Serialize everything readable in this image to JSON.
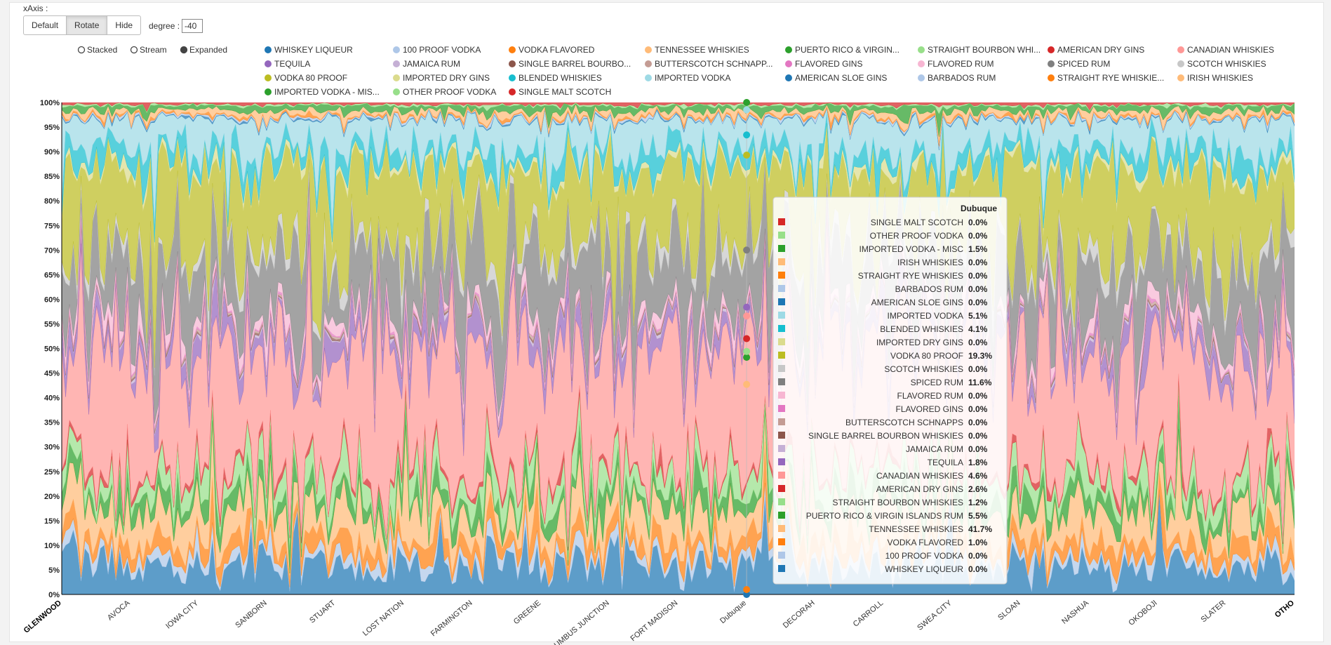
{
  "controls": {
    "xaxis_label": "xAxis :",
    "buttons": [
      "Default",
      "Rotate",
      "Hide"
    ],
    "active_button": "Rotate",
    "degree_label": "degree :",
    "degree_value": "-40",
    "modes": [
      "Stacked",
      "Stream",
      "Expanded"
    ],
    "active_mode": "Expanded"
  },
  "colors": {
    "WHISKEY LIQUEUR": "#1f77b4",
    "100 PROOF VODKA": "#aec7e8",
    "VODKA FLAVORED": "#ff7f0e",
    "TENNESSEE WHISKIES": "#ffbb78",
    "PUERTO RICO & VIRGIN ISLANDS RUM": "#2ca02c",
    "STRAIGHT BOURBON WHISKIES": "#98df8a",
    "AMERICAN DRY GINS": "#d62728",
    "CANADIAN WHISKIES": "#ff9896",
    "TEQUILA": "#9467bd",
    "JAMAICA RUM": "#c5b0d5",
    "SINGLE BARREL BOURBON WHISKIES": "#8c564b",
    "BUTTERSCOTCH SCHNAPPS": "#c49c94",
    "FLAVORED GINS": "#e377c2",
    "FLAVORED RUM": "#f7b6d2",
    "SPICED RUM": "#7f7f7f",
    "SCOTCH WHISKIES": "#c7c7c7",
    "VODKA 80 PROOF": "#bcbd22",
    "IMPORTED DRY GINS": "#dbdb8d",
    "BLENDED WHISKIES": "#17becf",
    "IMPORTED VODKA": "#9edae5",
    "AMERICAN SLOE GINS": "#1f77b4",
    "BARBADOS RUM": "#aec7e8",
    "STRAIGHT RYE WHISKIES": "#ff7f0e",
    "IRISH WHISKIES": "#ffbb78",
    "IMPORTED VODKA - MISC": "#2ca02c",
    "OTHER PROOF VODKA": "#98df8a",
    "SINGLE MALT SCOTCH": "#d62728"
  },
  "chart_data": {
    "type": "area",
    "stacking": "expanded",
    "legend_labels": [
      "WHISKEY LIQUEUR",
      "100 PROOF VODKA",
      "VODKA FLAVORED",
      "TENNESSEE WHISKIES",
      "PUERTO RICO & VIRGIN...",
      "STRAIGHT BOURBON WHI...",
      "AMERICAN DRY GINS",
      "CANADIAN WHISKIES",
      "TEQUILA",
      "JAMAICA RUM",
      "SINGLE BARREL BOURBO...",
      "BUTTERSCOTCH SCHNAPP...",
      "FLAVORED GINS",
      "FLAVORED RUM",
      "SPICED RUM",
      "SCOTCH WHISKIES",
      "VODKA 80 PROOF",
      "IMPORTED DRY GINS",
      "BLENDED WHISKIES",
      "IMPORTED VODKA",
      "AMERICAN SLOE GINS",
      "BARBADOS RUM",
      "STRAIGHT RYE WHISKIE...",
      "IRISH WHISKIES",
      "IMPORTED VODKA - MIS...",
      "OTHER PROOF VODKA",
      "SINGLE MALT SCOTCH"
    ],
    "legend_keys": [
      "WHISKEY LIQUEUR",
      "100 PROOF VODKA",
      "VODKA FLAVORED",
      "TENNESSEE WHISKIES",
      "PUERTO RICO & VIRGIN ISLANDS RUM",
      "STRAIGHT BOURBON WHISKIES",
      "AMERICAN DRY GINS",
      "CANADIAN WHISKIES",
      "TEQUILA",
      "JAMAICA RUM",
      "SINGLE BARREL BOURBON WHISKIES",
      "BUTTERSCOTCH SCHNAPPS",
      "FLAVORED GINS",
      "FLAVORED RUM",
      "SPICED RUM",
      "SCOTCH WHISKIES",
      "VODKA 80 PROOF",
      "IMPORTED DRY GINS",
      "BLENDED WHISKIES",
      "IMPORTED VODKA",
      "AMERICAN SLOE GINS",
      "BARBADOS RUM",
      "STRAIGHT RYE WHISKIES",
      "IRISH WHISKIES",
      "IMPORTED VODKA - MISC",
      "OTHER PROOF VODKA",
      "SINGLE MALT SCOTCH"
    ],
    "yticks": [
      "0%",
      "5%",
      "10%",
      "15%",
      "20%",
      "25%",
      "30%",
      "35%",
      "40%",
      "45%",
      "50%",
      "55%",
      "60%",
      "65%",
      "70%",
      "75%",
      "80%",
      "85%",
      "90%",
      "95%",
      "100%"
    ],
    "ylim": [
      0,
      100
    ],
    "xtick_labels": [
      "GLENWOOD",
      "AVOCA",
      "IOWA CITY",
      "SANBORN",
      "STUART",
      "LOST NATION",
      "FARMINGTON",
      "GREENE",
      "COLUMBUS JUNCTION",
      "FORT MADISON",
      "Dubuque",
      "DECORAH",
      "CARROLL",
      "SWEA CITY",
      "SLOAN",
      "NASHUA",
      "OKOBOJI",
      "SLATER",
      "OTHO"
    ],
    "bold_ticks": [
      "GLENWOOD",
      "OTHO"
    ],
    "x_label_rotation_deg": -40,
    "num_points": 320,
    "typical_share_percent": {
      "WHISKEY LIQUEUR": 6,
      "100 PROOF VODKA": 2,
      "VODKA FLAVORED": 3,
      "TENNESSEE WHISKIES": 6,
      "PUERTO RICO & VIRGIN ISLANDS RUM": 3,
      "STRAIGHT BOURBON WHISKIES": 4,
      "AMERICAN DRY GINS": 1,
      "CANADIAN WHISKIES": 24,
      "TEQUILA": 3,
      "JAMAICA RUM": 0.5,
      "SINGLE BARREL BOURBON WHISKIES": 0.3,
      "BUTTERSCOTCH SCHNAPPS": 0.4,
      "FLAVORED GINS": 0.3,
      "FLAVORED RUM": 2,
      "SPICED RUM": 12,
      "SCOTCH WHISKIES": 2,
      "VODKA 80 PROOF": 16,
      "IMPORTED DRY GINS": 1,
      "BLENDED WHISKIES": 3,
      "IMPORTED VODKA": 6,
      "AMERICAN SLOE GINS": 0.2,
      "BARBADOS RUM": 0.3,
      "STRAIGHT RYE WHISKIES": 0.3,
      "IRISH WHISKIES": 1,
      "IMPORTED VODKA - MISC": 1,
      "OTHER PROOF VODKA": 0.3,
      "SINGLE MALT SCOTCH": 0.4
    },
    "tooltip": {
      "title": "Dubuque",
      "rows": [
        {
          "name": "SINGLE MALT SCOTCH",
          "value": "0.0%"
        },
        {
          "name": "OTHER PROOF VODKA",
          "value": "0.0%"
        },
        {
          "name": "IMPORTED VODKA - MISC",
          "value": "1.5%"
        },
        {
          "name": "IRISH WHISKIES",
          "value": "0.0%"
        },
        {
          "name": "STRAIGHT RYE WHISKIES",
          "value": "0.0%"
        },
        {
          "name": "BARBADOS RUM",
          "value": "0.0%"
        },
        {
          "name": "AMERICAN SLOE GINS",
          "value": "0.0%"
        },
        {
          "name": "IMPORTED VODKA",
          "value": "5.1%"
        },
        {
          "name": "BLENDED WHISKIES",
          "value": "4.1%"
        },
        {
          "name": "IMPORTED DRY GINS",
          "value": "0.0%"
        },
        {
          "name": "VODKA 80 PROOF",
          "value": "19.3%"
        },
        {
          "name": "SCOTCH WHISKIES",
          "value": "0.0%"
        },
        {
          "name": "SPICED RUM",
          "value": "11.6%"
        },
        {
          "name": "FLAVORED RUM",
          "value": "0.0%"
        },
        {
          "name": "FLAVORED GINS",
          "value": "0.0%"
        },
        {
          "name": "BUTTERSCOTCH SCHNAPPS",
          "value": "0.0%"
        },
        {
          "name": "SINGLE BARREL BOURBON WHISKIES",
          "value": "0.0%"
        },
        {
          "name": "JAMAICA RUM",
          "value": "0.0%"
        },
        {
          "name": "TEQUILA",
          "value": "1.8%"
        },
        {
          "name": "CANADIAN WHISKIES",
          "value": "4.6%"
        },
        {
          "name": "AMERICAN DRY GINS",
          "value": "2.6%"
        },
        {
          "name": "STRAIGHT BOURBON WHISKIES",
          "value": "1.2%"
        },
        {
          "name": "PUERTO RICO & VIRGIN ISLANDS RUM",
          "value": "5.5%"
        },
        {
          "name": "TENNESSEE WHISKIES",
          "value": "41.7%"
        },
        {
          "name": "VODKA FLAVORED",
          "value": "1.0%"
        },
        {
          "name": "100 PROOF VODKA",
          "value": "0.0%"
        },
        {
          "name": "WHISKEY LIQUEUR",
          "value": "0.0%"
        }
      ]
    }
  }
}
